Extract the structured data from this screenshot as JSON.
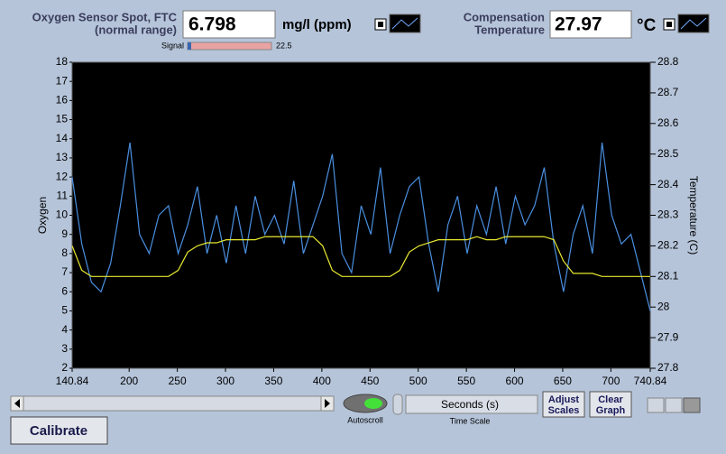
{
  "header": {
    "oxygen_label_1": "Oxygen Sensor Spot, FTC",
    "oxygen_label_2": "(normal range)",
    "oxygen_value": "6.798",
    "oxygen_unit": "mg/l (ppm)",
    "signal_label": "Signal",
    "signal_max": "22.5",
    "temp_label_1": "Compensation",
    "temp_label_2": "Temperature",
    "temp_value": "27.97",
    "temp_unit": "°C"
  },
  "chart_data": {
    "type": "line",
    "ylabel": "Oxygen",
    "y2label": "Temperature (C)",
    "grid": false,
    "background": "#000000",
    "x": [
      140.84,
      150.84,
      160.84,
      170.84,
      180.84,
      190.84,
      200.84,
      210.84,
      220.84,
      230.84,
      240.84,
      250.84,
      260.84,
      270.84,
      280.84,
      290.84,
      300.84,
      310.84,
      320.84,
      330.84,
      340.84,
      350.84,
      360.84,
      370.84,
      380.84,
      390.84,
      400.84,
      410.84,
      420.84,
      430.84,
      440.84,
      450.84,
      460.84,
      470.84,
      480.84,
      490.84,
      500.84,
      510.84,
      520.84,
      530.84,
      540.84,
      550.84,
      560.84,
      570.84,
      580.84,
      590.84,
      600.84,
      610.84,
      620.84,
      630.84,
      640.84,
      650.84,
      660.84,
      670.84,
      680.84,
      690.84,
      700.84,
      710.84,
      720.84,
      730.84,
      740.84
    ],
    "series": [
      {
        "name": "Oxygen",
        "color": "#4a8fe0",
        "values": [
          12,
          8.5,
          6.5,
          6,
          7.5,
          10.5,
          13.8,
          9,
          8,
          10,
          10.5,
          8,
          9.5,
          11.5,
          8,
          10,
          7.5,
          10.5,
          8,
          11,
          9,
          10,
          8.5,
          11.8,
          8,
          9.5,
          11,
          13.2,
          8,
          7,
          10.5,
          9,
          12.5,
          8,
          10,
          11.5,
          12,
          8.5,
          6,
          9.5,
          11,
          8,
          10.5,
          9,
          11.5,
          8.5,
          11,
          9.5,
          10.5,
          12.5,
          8.5,
          6,
          9,
          10.5,
          8,
          13.8,
          10,
          8.5,
          9,
          7,
          5
        ]
      },
      {
        "name": "Temperature",
        "color": "#e8e830",
        "axis": "y2",
        "values": [
          28.2,
          28.12,
          28.1,
          28.1,
          28.1,
          28.1,
          28.1,
          28.1,
          28.1,
          28.1,
          28.1,
          28.12,
          28.18,
          28.2,
          28.21,
          28.21,
          28.22,
          28.22,
          28.22,
          28.22,
          28.23,
          28.23,
          28.23,
          28.23,
          28.23,
          28.23,
          28.2,
          28.12,
          28.1,
          28.1,
          28.1,
          28.1,
          28.1,
          28.1,
          28.12,
          28.18,
          28.2,
          28.21,
          28.22,
          28.22,
          28.22,
          28.22,
          28.23,
          28.22,
          28.22,
          28.23,
          28.23,
          28.23,
          28.23,
          28.23,
          28.22,
          28.15,
          28.11,
          28.11,
          28.11,
          28.1,
          28.1,
          28.1,
          28.1,
          28.1,
          28.1
        ]
      }
    ],
    "xlim": [
      140.84,
      740.84
    ],
    "xticks": [
      140.84,
      200,
      250,
      300,
      350,
      400,
      450,
      500,
      550,
      600,
      650,
      700,
      740.84
    ],
    "ylim": [
      2,
      18
    ],
    "yticks": [
      2,
      3,
      4,
      5,
      6,
      7,
      8,
      9,
      10,
      11,
      12,
      13,
      14,
      15,
      16,
      17,
      18
    ],
    "y2lim": [
      27.8,
      28.8
    ],
    "y2ticks": [
      27.8,
      27.9,
      28,
      28.1,
      28.2,
      28.3,
      28.4,
      28.5,
      28.6,
      28.7,
      28.8
    ]
  },
  "controls": {
    "autoscroll": "Autoscroll",
    "time_unit": "Seconds (s)",
    "time_scale": "Time Scale",
    "adjust_1": "Adjust",
    "adjust_2": "Scales",
    "clear_1": "Clear",
    "clear_2": "Graph",
    "calibrate": "Calibrate"
  }
}
